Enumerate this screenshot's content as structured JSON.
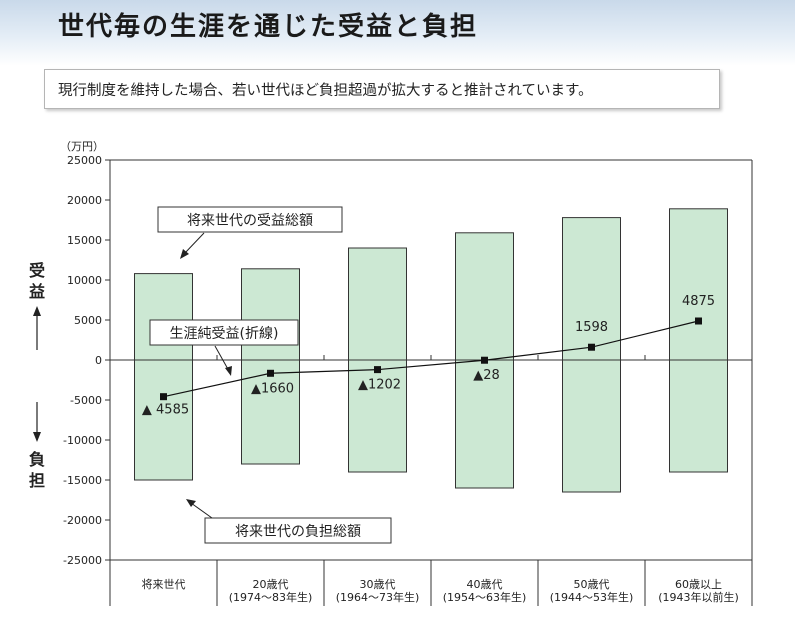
{
  "title": "世代毎の生涯を通じた受益と負担",
  "note": "現行制度を維持した場合、若い世代ほど負担超過が拡大すると推計されています。",
  "chart_data": {
    "type": "bar",
    "unit": "（万円）",
    "yticks": [
      25000,
      20000,
      15000,
      10000,
      5000,
      0,
      -5000,
      -10000,
      -15000,
      -20000,
      -25000
    ],
    "ylim": [
      -25000,
      25000
    ],
    "ylabel_top": "受益",
    "ylabel_bottom": "負担",
    "categories": [
      {
        "line1": "将来世代",
        "line2": ""
      },
      {
        "line1": "20歳代",
        "line2": "(1974〜83年生)"
      },
      {
        "line1": "30歳代",
        "line2": "(1964〜73年生)"
      },
      {
        "line1": "40歳代",
        "line2": "(1954〜63年生)"
      },
      {
        "line1": "50歳代",
        "line2": "(1944〜53年生)"
      },
      {
        "line1": "60歳以上",
        "line2": "(1943年以前生)"
      }
    ],
    "bars": {
      "benefit": [
        10800,
        11400,
        14000,
        15900,
        17800,
        18900
      ],
      "burden": [
        -15000,
        -13000,
        -14000,
        -16000,
        -16500,
        -14000
      ]
    },
    "line": {
      "values": [
        -4585,
        -1660,
        -1202,
        -28,
        1598,
        4875
      ],
      "labels": [
        "▲ 4585",
        "▲1660",
        "▲1202",
        "▲28",
        "1598",
        "4875"
      ]
    },
    "annotations": {
      "benefit_total": "将来世代の受益総額",
      "net_benefit": "生涯純受益(折線)",
      "burden_total": "将来世代の負担総額"
    },
    "colors": {
      "bar_fill": "#cce8d3",
      "bar_stroke": "#333333",
      "line": "#111111"
    }
  }
}
